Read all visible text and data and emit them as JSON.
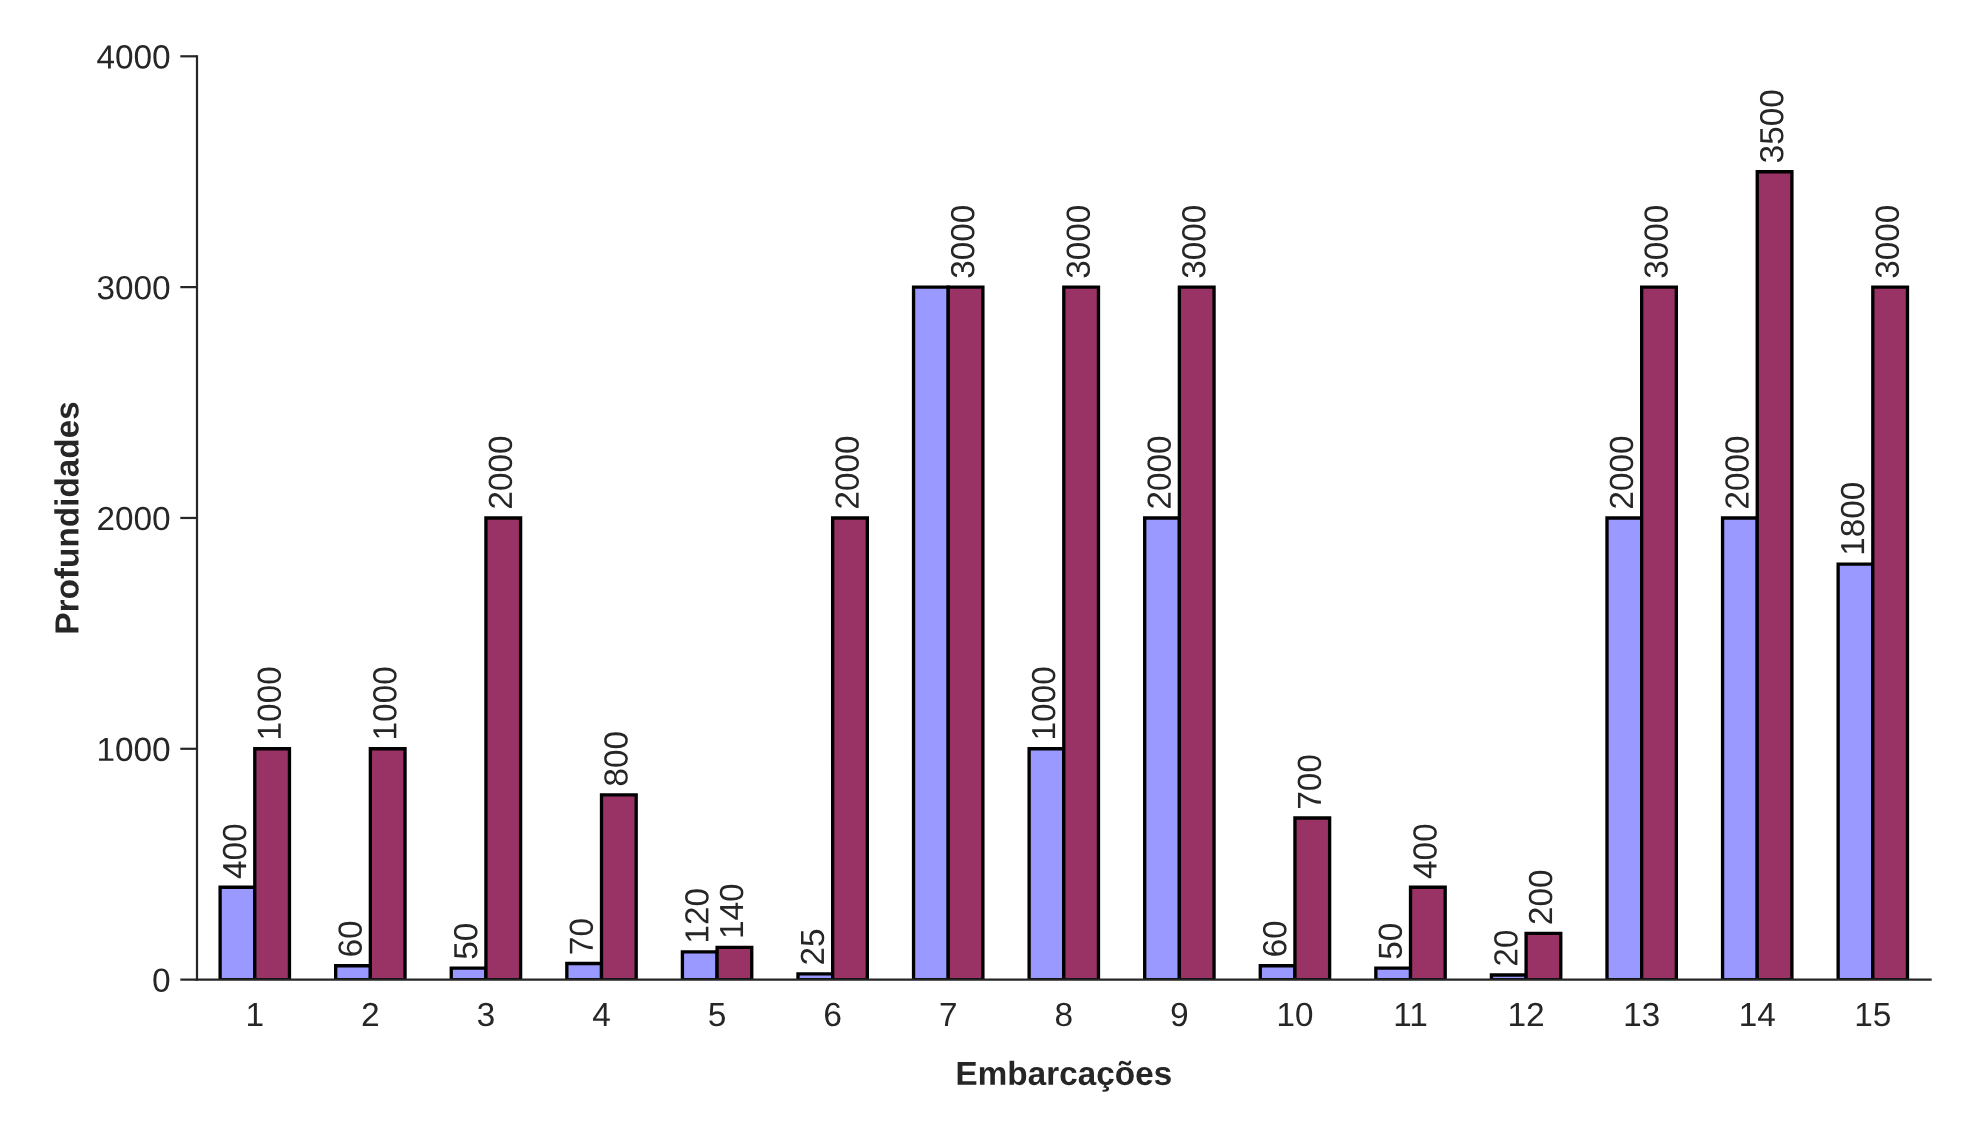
{
  "chart_data": {
    "type": "bar",
    "xlabel": "Embarcações",
    "ylabel": "Profundidades",
    "categories": [
      "1",
      "2",
      "3",
      "4",
      "5",
      "6",
      "7",
      "8",
      "9",
      "10",
      "11",
      "12",
      "13",
      "14",
      "15"
    ],
    "series": [
      {
        "color": "#9999ff",
        "values": [
          400,
          60,
          50,
          70,
          120,
          25,
          3000,
          1000,
          2000,
          60,
          50,
          20,
          2000,
          2000,
          1800
        ],
        "value_labels": [
          "400",
          "60",
          "50",
          "70",
          "120",
          "25",
          null,
          "1000",
          "2000",
          "60",
          "50",
          "20",
          "2000",
          "2000",
          "1800"
        ]
      },
      {
        "color": "#993366",
        "values": [
          1000,
          1000,
          2000,
          800,
          140,
          2000,
          3000,
          3000,
          3000,
          700,
          400,
          200,
          3000,
          3500,
          3000
        ],
        "value_labels": [
          "1000",
          "1000",
          "2000",
          "800",
          "140",
          "2000",
          "3000",
          "3000",
          "3000",
          "700",
          "400",
          "200",
          "3000",
          "3500",
          "3000"
        ]
      }
    ],
    "ylim": [
      0,
      4000
    ],
    "yticks": [
      0,
      1000,
      2000,
      3000,
      4000
    ],
    "grid": false,
    "legend": false
  }
}
